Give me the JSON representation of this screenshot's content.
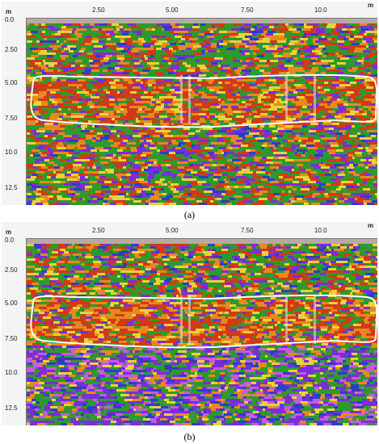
{
  "panels": [
    {
      "caption": "(a)",
      "unit_top": "m",
      "unit_left": "m",
      "x_ticks": [
        "2.50",
        "5.00",
        "7.50",
        "10.0"
      ],
      "y_ticks": [
        "0.0",
        "2.50",
        "5.00",
        "7.50",
        "10.0",
        "12.5"
      ]
    },
    {
      "caption": "(b)",
      "unit_top": "m",
      "unit_left": "m",
      "x_ticks": [
        "2.50",
        "5.00",
        "7.50",
        "10.0"
      ],
      "y_ticks": [
        "0.0",
        "2.50",
        "5.00",
        "7.50",
        "10.0",
        "12.5"
      ]
    }
  ],
  "colors": {
    "background_green": "#2e9a2e",
    "red": "#d13a17",
    "orange": "#e68a1e",
    "yellow": "#e9d23a",
    "purple": "#7a2ed6",
    "magenta": "#c45be0",
    "blue": "#2b3fc4",
    "outline": "#ffffff"
  }
}
